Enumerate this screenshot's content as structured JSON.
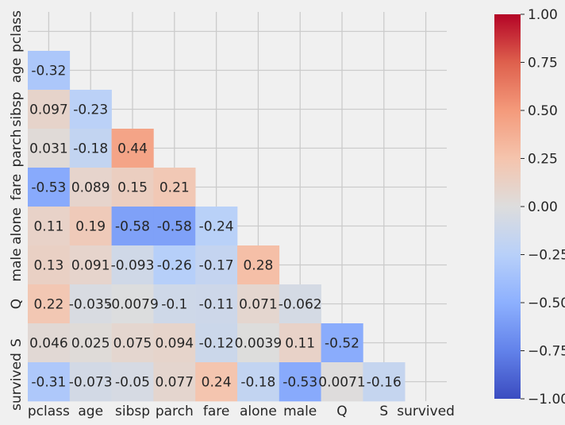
{
  "chart_data": {
    "type": "heatmap",
    "title": "",
    "xlabel": "",
    "ylabel": "",
    "mask": "upper-triangle",
    "x_labels": [
      "pclass",
      "age",
      "sibsp",
      "parch",
      "fare",
      "alone",
      "male",
      "Q",
      "S",
      "survived"
    ],
    "y_labels": [
      "pclass",
      "age",
      "sibsp",
      "parch",
      "fare",
      "alone",
      "male",
      "Q",
      "S",
      "survived"
    ],
    "cells": [
      {
        "row": 1,
        "col": 0,
        "value": -0.32,
        "label": "-0.32"
      },
      {
        "row": 2,
        "col": 0,
        "value": 0.097,
        "label": "0.097"
      },
      {
        "row": 2,
        "col": 1,
        "value": -0.23,
        "label": "-0.23"
      },
      {
        "row": 3,
        "col": 0,
        "value": 0.031,
        "label": "0.031"
      },
      {
        "row": 3,
        "col": 1,
        "value": -0.18,
        "label": "-0.18"
      },
      {
        "row": 3,
        "col": 2,
        "value": 0.44,
        "label": "0.44"
      },
      {
        "row": 4,
        "col": 0,
        "value": -0.53,
        "label": "-0.53"
      },
      {
        "row": 4,
        "col": 1,
        "value": 0.089,
        "label": "0.089"
      },
      {
        "row": 4,
        "col": 2,
        "value": 0.15,
        "label": "0.15"
      },
      {
        "row": 4,
        "col": 3,
        "value": 0.21,
        "label": "0.21"
      },
      {
        "row": 5,
        "col": 0,
        "value": 0.11,
        "label": "0.11"
      },
      {
        "row": 5,
        "col": 1,
        "value": 0.19,
        "label": "0.19"
      },
      {
        "row": 5,
        "col": 2,
        "value": -0.58,
        "label": "-0.58"
      },
      {
        "row": 5,
        "col": 3,
        "value": -0.58,
        "label": "-0.58"
      },
      {
        "row": 5,
        "col": 4,
        "value": -0.24,
        "label": "-0.24"
      },
      {
        "row": 6,
        "col": 0,
        "value": 0.13,
        "label": "0.13"
      },
      {
        "row": 6,
        "col": 1,
        "value": 0.091,
        "label": "0.091"
      },
      {
        "row": 6,
        "col": 2,
        "value": -0.093,
        "label": "-0.093"
      },
      {
        "row": 6,
        "col": 3,
        "value": -0.26,
        "label": "-0.26"
      },
      {
        "row": 6,
        "col": 4,
        "value": -0.17,
        "label": "-0.17"
      },
      {
        "row": 6,
        "col": 5,
        "value": 0.28,
        "label": "0.28"
      },
      {
        "row": 7,
        "col": 0,
        "value": 0.22,
        "label": "0.22"
      },
      {
        "row": 7,
        "col": 1,
        "value": -0.035,
        "label": "-0.035"
      },
      {
        "row": 7,
        "col": 2,
        "value": -0.0079,
        "label": "-0.0079"
      },
      {
        "row": 7,
        "col": 3,
        "value": -0.1,
        "label": "-0.1"
      },
      {
        "row": 7,
        "col": 4,
        "value": -0.11,
        "label": "-0.11"
      },
      {
        "row": 7,
        "col": 5,
        "value": 0.071,
        "label": "0.071"
      },
      {
        "row": 7,
        "col": 6,
        "value": -0.062,
        "label": "-0.062"
      },
      {
        "row": 8,
        "col": 0,
        "value": 0.046,
        "label": "0.046"
      },
      {
        "row": 8,
        "col": 1,
        "value": 0.025,
        "label": "0.025"
      },
      {
        "row": 8,
        "col": 2,
        "value": 0.075,
        "label": "0.075"
      },
      {
        "row": 8,
        "col": 3,
        "value": 0.094,
        "label": "0.094"
      },
      {
        "row": 8,
        "col": 4,
        "value": -0.12,
        "label": "-0.12"
      },
      {
        "row": 8,
        "col": 5,
        "value": 0.0039,
        "label": "0.0039"
      },
      {
        "row": 8,
        "col": 6,
        "value": 0.11,
        "label": "0.11"
      },
      {
        "row": 8,
        "col": 7,
        "value": -0.52,
        "label": "-0.52"
      },
      {
        "row": 9,
        "col": 0,
        "value": -0.31,
        "label": "-0.31"
      },
      {
        "row": 9,
        "col": 1,
        "value": -0.073,
        "label": "-0.073"
      },
      {
        "row": 9,
        "col": 2,
        "value": -0.05,
        "label": "-0.05"
      },
      {
        "row": 9,
        "col": 3,
        "value": 0.077,
        "label": "0.077"
      },
      {
        "row": 9,
        "col": 4,
        "value": 0.24,
        "label": "0.24"
      },
      {
        "row": 9,
        "col": 5,
        "value": -0.18,
        "label": "-0.18"
      },
      {
        "row": 9,
        "col": 6,
        "value": -0.53,
        "label": "-0.53"
      },
      {
        "row": 9,
        "col": 7,
        "value": 0.0071,
        "label": "0.0071"
      },
      {
        "row": 9,
        "col": 8,
        "value": -0.16,
        "label": "-0.16"
      }
    ],
    "colorbar": {
      "colormap": "coolwarm",
      "range": [
        -1,
        1
      ],
      "ticks": [
        1.0,
        0.75,
        0.5,
        0.25,
        0.0,
        -0.25,
        -0.5,
        -0.75,
        -1.0
      ],
      "tick_labels": [
        "1.00",
        "0.75",
        "0.50",
        "0.25",
        "0.00",
        "−0.25",
        "−0.50",
        "−0.75",
        "−1.00"
      ],
      "min_color": "#3b4cc0",
      "mid_color": "#dddddd",
      "max_color": "#b40426"
    },
    "grid": true,
    "colors": {
      "background": "#f0f0f0",
      "grid": "#cbcbcb",
      "text_dark": "#262626",
      "text_light": "#ffffff"
    }
  }
}
